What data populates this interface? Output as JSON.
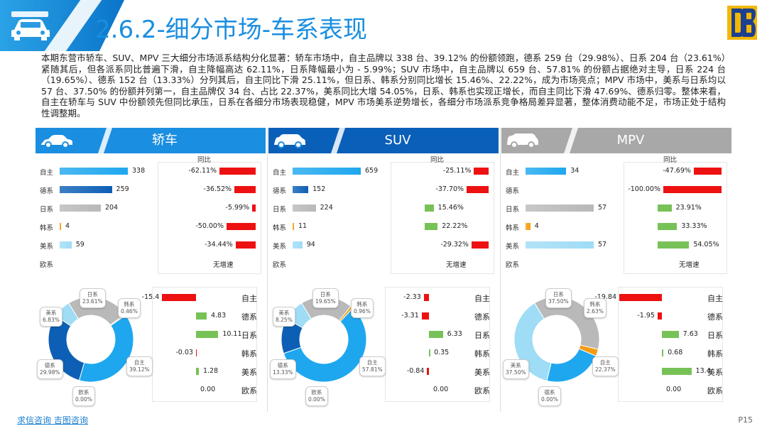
{
  "header": {
    "title": "2.6.2-细分市场-车系表现"
  },
  "intro": "本期东营市轿车、SUV、MPV 三大细分市场派系结构分化显著：轿车市场中，自主品牌以 338 台、39.12% 的份额领跑，德系 259 台（29.98%）、日系 204 台（23.61%）紧随其后，但各派系同比普遍下滑，自主降幅高达 62.11%，日系降幅最小为 - 5.99%；SUV 市场中，自主品牌以 659 台、57.81% 的份额占据绝对主导，日系 224 台（19.65%）、德系 152 台（13.33%）分列其后，自主同比下滑 25.11%，但日系、韩系分别同比增长 15.46%、22.22%，成为市场亮点；MPV 市场中，美系与日系均以 57 台、37.50% 的份额并列第一，自主品牌仅 34 台、占比 22.37%，美系同比大增 54.05%，日系、韩系也实现正增长，而自主同比下滑 47.69%、德系归零。整体来看，自主在轿车与 SUV 中份额领先但同比承压，日系在各细分市场表现稳健，MPV 市场美系逆势增长，各细分市场派系竞争格局差异显著，整体消费动能不足，市场正处于结构性调整期。",
  "series_labels": [
    "自主",
    "德系",
    "日系",
    "韩系",
    "美系",
    "欧系"
  ],
  "yoy_header": "同比",
  "no_growth": "无增速",
  "colors": {
    "zizhu": "#1ea7ef",
    "dexi": "#0d5fb5",
    "rixi": "#b9b9b9",
    "hanxi": "#f39c12",
    "meixi": "#9fdcf5",
    "neg": "#ee1111",
    "pos": "#77c257"
  },
  "panels": [
    {
      "title": "轿车",
      "icon": "sedan-icon",
      "ribbon_color": "#1a8ee0",
      "volumes": [
        338,
        259,
        204,
        4,
        59,
        null
      ],
      "volume_labels": [
        "338",
        "259",
        "204",
        "4",
        "59",
        ""
      ],
      "yoy": [
        -62.11,
        -36.52,
        -5.99,
        -50.0,
        -34.44,
        null
      ],
      "yoy_labels": [
        "-62.11%",
        "-36.52%",
        "-5.99%",
        "-50.00%",
        "-34.44%",
        ""
      ],
      "share_change": [
        -15.4,
        4.83,
        10.11,
        -0.03,
        1.28,
        0.0
      ],
      "share_change_labels": [
        "-15.4",
        "4.83",
        "10.11",
        "-0.03",
        "1.28",
        "0.00"
      ],
      "donut": [
        {
          "name": "日系",
          "pct": "23.61%",
          "value": 23.61
        },
        {
          "name": "韩系",
          "pct": "0.46%",
          "value": 0.46
        },
        {
          "name": "自主",
          "pct": "39.12%",
          "value": 39.12
        },
        {
          "name": "欧系",
          "pct": "0.00%",
          "value": 0
        },
        {
          "name": "德系",
          "pct": "29.98%",
          "value": 29.98
        },
        {
          "name": "美系",
          "pct": "6.83%",
          "value": 6.83
        }
      ]
    },
    {
      "title": "SUV",
      "icon": "suv-icon",
      "ribbon_color": "#0a5fb8",
      "volumes": [
        659,
        152,
        224,
        11,
        94,
        null
      ],
      "volume_labels": [
        "659",
        "152",
        "224",
        "11",
        "94",
        ""
      ],
      "yoy": [
        -25.11,
        -37.7,
        15.46,
        22.22,
        -29.32,
        null
      ],
      "yoy_labels": [
        "-25.11%",
        "-37.70%",
        "15.46%",
        "22.22%",
        "-29.32%",
        ""
      ],
      "share_change": [
        -2.33,
        -3.31,
        6.33,
        0.35,
        -0.84,
        0.0
      ],
      "share_change_labels": [
        "-2.33",
        "-3.31",
        "6.33",
        "0.35",
        "-0.84",
        "0.00"
      ],
      "donut": [
        {
          "name": "日系",
          "pct": "19.65%",
          "value": 19.65
        },
        {
          "name": "韩系",
          "pct": "0.96%",
          "value": 0.96
        },
        {
          "name": "自主",
          "pct": "57.81%",
          "value": 57.81
        },
        {
          "name": "欧系",
          "pct": "0.00%",
          "value": 0
        },
        {
          "name": "德系",
          "pct": "13.33%",
          "value": 13.33
        },
        {
          "name": "美系",
          "pct": "8.25%",
          "value": 8.25
        }
      ]
    },
    {
      "title": "MPV",
      "icon": "mpv-icon",
      "ribbon_color": "#a8a8a8",
      "volumes": [
        34,
        null,
        57,
        4,
        57,
        null
      ],
      "volume_labels": [
        "34",
        "",
        "57",
        "4",
        "57",
        ""
      ],
      "yoy": [
        -47.69,
        -100.0,
        23.91,
        33.33,
        54.05,
        null
      ],
      "yoy_labels": [
        "-47.69%",
        "-100.00%",
        "23.91%",
        "33.33%",
        "54.05%",
        ""
      ],
      "share_change": [
        -19.84,
        -1.95,
        7.63,
        0.68,
        13.4,
        0.0
      ],
      "share_change_labels": [
        "-19.84",
        "-1.95",
        "7.63",
        "0.68",
        "13.4",
        "0.00"
      ],
      "donut": [
        {
          "name": "日系",
          "pct": "37.50%",
          "value": 37.5
        },
        {
          "name": "韩系",
          "pct": "2.63%",
          "value": 2.63
        },
        {
          "name": "自主",
          "pct": "22.37%",
          "value": 22.37
        },
        {
          "name": "德系",
          "pct": "0.00%",
          "value": 0
        },
        {
          "name": "美系",
          "pct": "37.50%",
          "value": 37.5
        }
      ]
    }
  ],
  "footer": {
    "links": "求信咨询 吉图咨询",
    "page": "P15"
  }
}
